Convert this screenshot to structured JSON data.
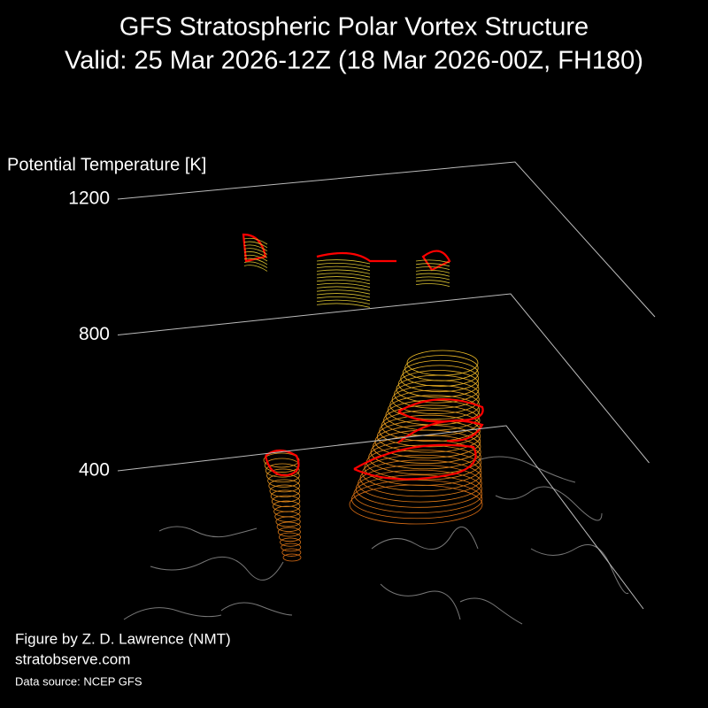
{
  "chart_data": {
    "type": "vortex-3d",
    "title": "GFS Stratospheric Polar Vortex Structure",
    "subtitle": "Valid: 25 Mar 2026-12Z  (18 Mar 2026-00Z, FH180)",
    "zlabel": "Potential Temperature [K]",
    "zlim": [
      400,
      1200
    ],
    "zticks": [
      400,
      800,
      1200
    ],
    "credits": [
      "Figure by Z. D. Lawrence (NMT)",
      "stratobserve.com"
    ],
    "source": "Data source: NCEP GFS"
  }
}
